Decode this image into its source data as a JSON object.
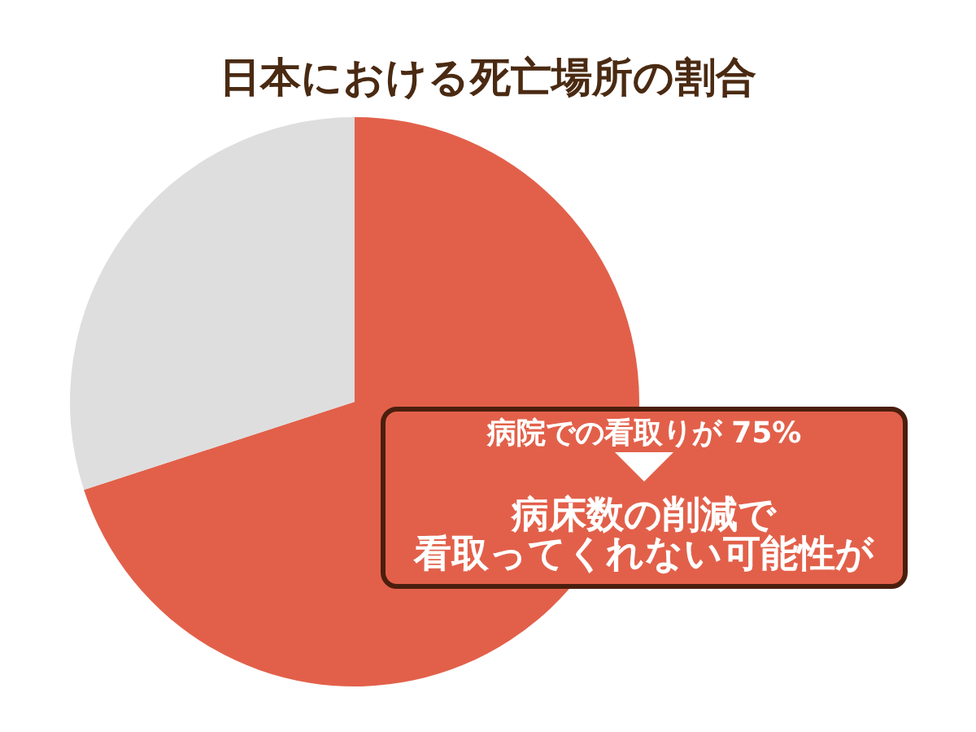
{
  "chart_data": {
    "type": "pie",
    "title": "日本における死亡場所の割合",
    "categories": [
      null,
      null
    ],
    "values": [
      70,
      30
    ],
    "colors": [
      "#e2604a",
      "#dedede"
    ],
    "annotations": [
      "病院での看取りが 75%",
      "病床数の削減で",
      "看取ってくれない可能性が"
    ]
  }
}
